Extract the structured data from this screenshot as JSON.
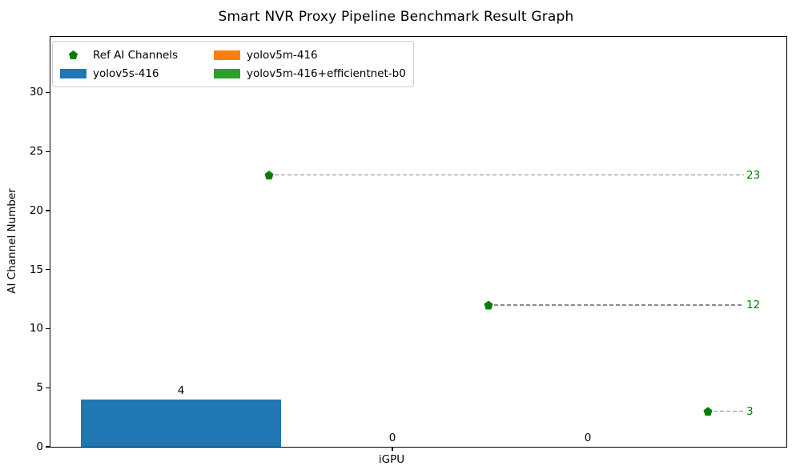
{
  "chart_data": {
    "type": "bar",
    "title": "Smart NVR Proxy Pipeline Benchmark Result Graph",
    "xlabel": "iGPU",
    "ylabel": "AI Channel Number",
    "categories": [
      "iGPU"
    ],
    "ylim": [
      0,
      34.7
    ],
    "yticks": [
      0,
      5,
      10,
      15,
      20,
      25,
      30
    ],
    "grid": false,
    "legend_position": "upper left",
    "series": [
      {
        "name": "yolov5s-416",
        "type": "bar",
        "color": "#1f77b4",
        "values": [
          4
        ]
      },
      {
        "name": "yolov5m-416",
        "type": "bar",
        "color": "#ff7f0e",
        "values": [
          0
        ]
      },
      {
        "name": "yolov5m-416+efficientnet-b0",
        "type": "bar",
        "color": "#2ca02c",
        "values": [
          0
        ]
      }
    ],
    "bar_value_labels": [
      "4",
      "0",
      "0"
    ],
    "ref_markers": {
      "name": "Ref AI Channels",
      "marker": "pentagon",
      "color": "#008000",
      "values": [
        23,
        12,
        3
      ],
      "labels": [
        "23",
        "12",
        "3"
      ],
      "line_style": "dashed",
      "line_color": "#8a8a8a"
    }
  },
  "legend": {
    "items": [
      {
        "label": "Ref AI Channels",
        "swatch": "pentagon",
        "color": "#008000"
      },
      {
        "label": "yolov5m-416",
        "swatch": "rect",
        "color": "#ff7f0e"
      },
      {
        "label": "yolov5s-416",
        "swatch": "rect",
        "color": "#1f77b4"
      },
      {
        "label": "yolov5m-416+efficientnet-b0",
        "swatch": "rect",
        "color": "#2ca02c"
      }
    ]
  }
}
